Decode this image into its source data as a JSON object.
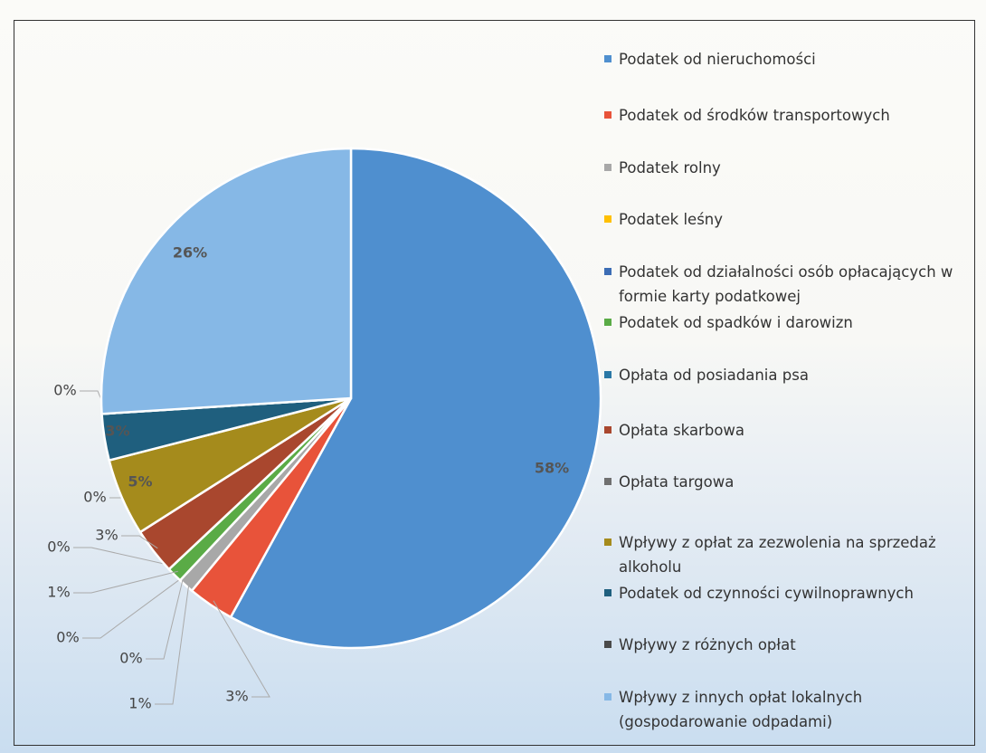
{
  "chart_data": {
    "type": "pie",
    "categories": [
      "Podatek od nieruchomości",
      "Podatek od środków transportowych",
      "Podatek rolny",
      "Podatek leśny",
      "Podatek od działalności osób opłacających w formie karty podatkowej",
      "Podatek od spadków i darowizn",
      "Opłata od posiadania psa",
      "Opłata skarbowa",
      "Opłata targowa",
      "Wpływy z opłat za zezwolenia na sprzedaż alkoholu",
      "Podatek od czynności cywilnoprawnych",
      "Wpływy z różnych opłat",
      "Wpływy z innych opłat lokalnych (gospodarowanie odpadami)"
    ],
    "values": [
      58,
      3,
      1,
      0,
      0,
      1,
      0,
      3,
      0,
      5,
      3,
      0,
      26
    ],
    "value_labels": [
      "58%",
      "3%",
      "1%",
      "0%",
      "0%",
      "1%",
      "0%",
      "3%",
      "0%",
      "5%",
      "3%",
      "0%",
      "26%"
    ],
    "colors": [
      "#4f8fcf",
      "#e8533a",
      "#a8a8a8",
      "#ffc000",
      "#3c6db5",
      "#5aab46",
      "#2a78a6",
      "#a9472e",
      "#707070",
      "#a58b1c",
      "#1f5f7e",
      "#4a4a4a",
      "#86b8e6"
    ]
  }
}
